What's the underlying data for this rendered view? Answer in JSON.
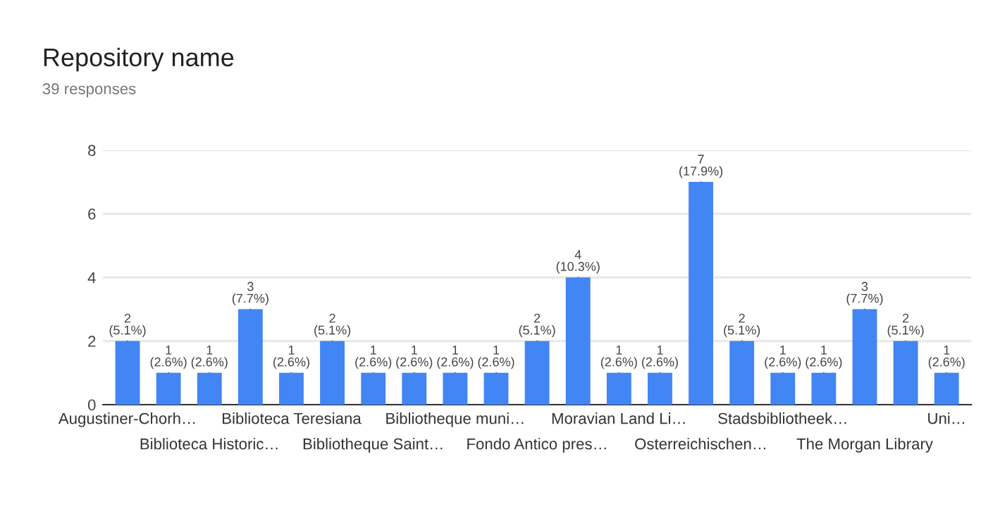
{
  "chart_data": {
    "type": "bar",
    "title": "Repository name",
    "subtitle": "39 responses",
    "categories": [
      "Augustiner-Chorh…",
      null,
      "Biblioteca Historic…",
      null,
      "Biblioteca Teresiana",
      null,
      "Bibliotheque Saint…",
      null,
      "Bibliotheque muni…",
      null,
      "Fondo Antico pres…",
      null,
      "Moravian Land Li…",
      null,
      "Osterreichischen…",
      null,
      "Stadsbibliotheek…",
      null,
      "The Morgan Library",
      null,
      "Uni…"
    ],
    "values": [
      2,
      1,
      1,
      3,
      1,
      2,
      1,
      1,
      1,
      1,
      2,
      4,
      1,
      1,
      7,
      2,
      1,
      1,
      3,
      2,
      1
    ],
    "value_labels": [
      "2 (5.1%)",
      "1 (2.6%)",
      "1 (2.6%)",
      "3 (7.7%)",
      "1 (2.6%)",
      "2 (5.1%)",
      "1 (2.6%)",
      "1 (2.6%)",
      "1 (2.6%)",
      "1 (2.6%)",
      "2 (5.1%)",
      "4 (10.3%)",
      "1 (2.6%)",
      "1 (2.6%)",
      "7 (17.9%)",
      "2 (5.1%)",
      "1 (2.6%)",
      "1 (2.6%)",
      "3 (7.7%)",
      "2 (5.1%)",
      "1 (2.6%)"
    ],
    "color": "#4285f4",
    "ylim": [
      0,
      8
    ],
    "yticks": [
      0,
      2,
      4,
      6,
      8
    ],
    "grid": "y"
  }
}
